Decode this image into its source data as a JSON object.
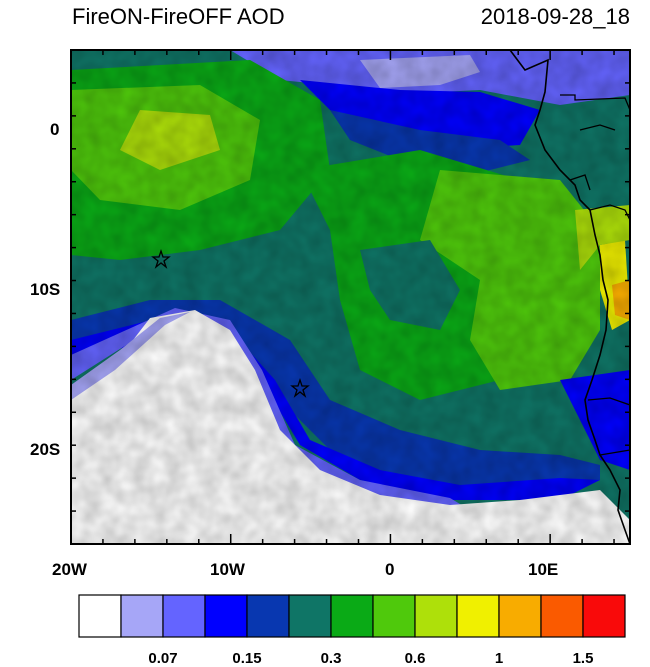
{
  "title": "FireON-FireOFF AOD",
  "timestamp": "2018-09-28_18",
  "map": {
    "lat_ticks": [
      {
        "label": "0",
        "value": 0
      },
      {
        "label": "10S",
        "value": -10
      },
      {
        "label": "20S",
        "value": -20
      }
    ],
    "lon_ticks": [
      {
        "label": "20W",
        "value": -20
      },
      {
        "label": "10W",
        "value": -10
      },
      {
        "label": "0",
        "value": 0
      },
      {
        "label": "10E",
        "value": 10
      }
    ],
    "lon_range": [
      -20,
      15
    ],
    "lat_range": [
      -25,
      5
    ],
    "markers": [
      {
        "name": "star-marker",
        "lon": -14.3,
        "lat": -8.0
      },
      {
        "name": "star-marker",
        "lon": -5.7,
        "lat": -16.0
      }
    ]
  },
  "colorbar": {
    "colors": [
      "#ffffff",
      "#a6a6f7",
      "#6464ff",
      "#0000ff",
      "#0837b0",
      "#0f7566",
      "#0aaa16",
      "#4fc90c",
      "#aee00a",
      "#f0f000",
      "#f8ac00",
      "#fa5a00",
      "#f90a0a"
    ],
    "labels": [
      {
        "text": "0.07",
        "after_box": 1
      },
      {
        "text": "0.15",
        "after_box": 3
      },
      {
        "text": "0.3",
        "after_box": 5
      },
      {
        "text": "0.6",
        "after_box": 7
      },
      {
        "text": "1",
        "after_box": 9
      },
      {
        "text": "1.5",
        "after_box": 11
      }
    ]
  }
}
